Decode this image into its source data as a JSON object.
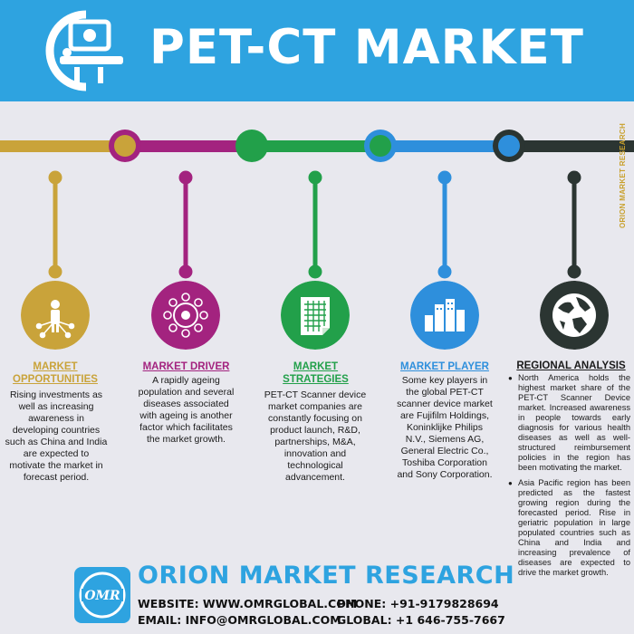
{
  "header": {
    "title": "PET-CT MARKET",
    "bg_color": "#2ea3e0"
  },
  "side_label": "ORION MARKET RESEARCH",
  "columns": [
    {
      "title_lines": [
        "MARKET",
        "OPPORTUNITIES"
      ],
      "color": "#c9a33a",
      "icon": "person-network-icon",
      "text_lines": [
        "Rising investments as",
        "well as increasing",
        "awareness in",
        "developing countries",
        "such as China and India",
        "are expected to",
        "motivate the market in",
        "forecast period."
      ]
    },
    {
      "title_lines": [
        "MARKET DRIVER"
      ],
      "color": "#a3237f",
      "icon": "network-cog-icon",
      "text_lines": [
        "A rapidly ageing",
        "population and several",
        "diseases associated",
        "with ageing is another",
        "factor which facilitates",
        "the market growth."
      ]
    },
    {
      "title_lines": [
        "MARKET",
        "STRATEGIES"
      ],
      "color": "#22a04a",
      "icon": "grid-document-icon",
      "text_lines": [
        "PET-CT Scanner device",
        "market companies are",
        "constantly focusing on",
        "product launch, R&D,",
        "partnerships, M&A,",
        "innovation and",
        "technological",
        "advancement."
      ]
    },
    {
      "title_lines": [
        "MARKET PLAYER"
      ],
      "color": "#2e8fdc",
      "icon": "city-buildings-icon",
      "text_lines": [
        "Some key players in",
        "the global PET-CT",
        "scanner device market",
        "are Fujifilm Holdings,",
        "Koninklijke Philips",
        "N.V., Siemens AG,",
        "General Electric Co.,",
        "Toshiba Corporation",
        "and Sony Corporation."
      ]
    },
    {
      "title_lines": [
        "REGIONAL ANALYSIS"
      ],
      "color": "#2b3532",
      "icon": "globe-icon"
    }
  ],
  "regional_bullets": [
    "North America holds the highest market share of the PET-CT Scanner Device market. Increased awareness in people towards early diagnosis for various health diseases as well as well-structured reimbursement policies in the region has been motivating the market.",
    "Asia Pacific region has been predicted as the fastest growing region during the forecasted period. Rise in geriatric population in large populated countries such as China and India and increasing prevalence of diseases are expected to drive the market growth."
  ],
  "footer": {
    "company": "ORION MARKET RESEARCH",
    "logo_text": "OMR",
    "website": "WEBSITE: WWW.OMRGLOBAL.COM",
    "email": "EMAIL:  INFO@OMRGLOBAL.COM",
    "phone": "PHONE:  +91-9179828694",
    "global": "GLOBAL: +1 646-755-7667"
  }
}
